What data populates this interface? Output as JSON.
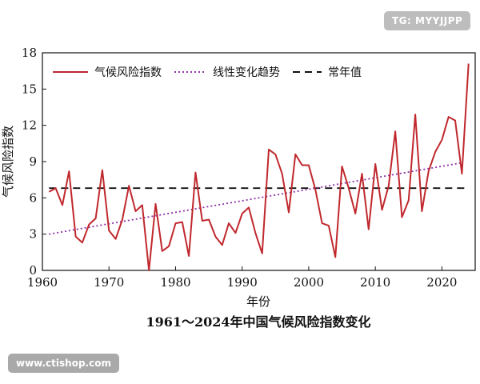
{
  "watermarks": {
    "top_right": "TG: MYYJJPP",
    "bottom_left": "www.ctishop.com"
  },
  "caption": "1961～2024年中国气候风险指数变化",
  "chart_data": {
    "type": "line",
    "xlabel": "年份",
    "ylabel": "气候风险指数",
    "xlim": [
      1960,
      2025
    ],
    "ylim": [
      0,
      18
    ],
    "xticks": [
      1960,
      1970,
      1980,
      1990,
      2000,
      2010,
      2020
    ],
    "yticks": [
      0,
      3,
      6,
      9,
      12,
      15,
      18
    ],
    "legend_position": "top",
    "series": [
      {
        "name": "气候风险指数",
        "style": "solid",
        "color": "#c0282d",
        "x": [
          1961,
          1962,
          1963,
          1964,
          1965,
          1966,
          1967,
          1968,
          1969,
          1970,
          1971,
          1972,
          1973,
          1974,
          1975,
          1976,
          1977,
          1978,
          1979,
          1980,
          1981,
          1982,
          1983,
          1984,
          1985,
          1986,
          1987,
          1988,
          1989,
          1990,
          1991,
          1992,
          1993,
          1994,
          1995,
          1996,
          1997,
          1998,
          1999,
          2000,
          2001,
          2002,
          2003,
          2004,
          2005,
          2006,
          2007,
          2008,
          2009,
          2010,
          2011,
          2012,
          2013,
          2014,
          2015,
          2016,
          2017,
          2018,
          2019,
          2020,
          2021,
          2022,
          2023,
          2024
        ],
        "values": [
          6.5,
          6.8,
          5.4,
          8.2,
          2.8,
          2.3,
          3.8,
          4.3,
          8.3,
          3.3,
          2.6,
          4.2,
          7.0,
          4.9,
          5.4,
          0.0,
          5.5,
          1.6,
          2.0,
          3.9,
          4.0,
          1.2,
          8.1,
          4.1,
          4.2,
          2.8,
          2.1,
          3.9,
          3.1,
          4.7,
          5.2,
          3.1,
          1.4,
          10.0,
          9.6,
          8.0,
          4.8,
          9.6,
          8.7,
          8.7,
          6.7,
          3.9,
          3.7,
          1.1,
          8.6,
          6.8,
          4.7,
          8.0,
          3.4,
          8.8,
          5.0,
          7.0,
          11.5,
          4.4,
          5.8,
          12.9,
          4.9,
          8.2,
          9.8,
          10.8,
          12.7,
          12.4,
          8.0,
          17.1
        ]
      },
      {
        "name": "线性变化趋势",
        "style": "dotted",
        "color": "#8e2fa8",
        "x": [
          1961,
          2023
        ],
        "values": [
          3.0,
          8.9
        ]
      },
      {
        "name": "常年值",
        "style": "dashed",
        "color": "#111111",
        "x": [
          1961,
          2024
        ],
        "values": [
          6.8,
          6.8
        ]
      }
    ]
  }
}
